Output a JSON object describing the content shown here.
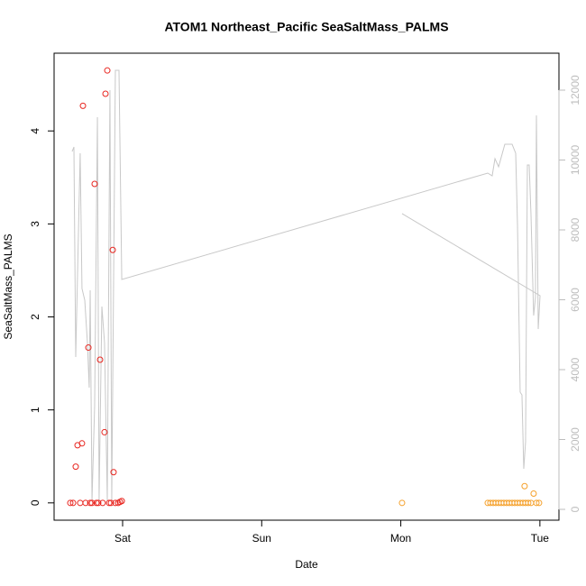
{
  "chart_data": {
    "type": "scatter",
    "title": "ATOM1 Northeast_Pacific SeaSaltMass_PALMS",
    "x_label": "Date",
    "y_label": "SeaSaltMass_PALMS",
    "xlim": [
      -0.4925,
      3.137
    ],
    "xticks": [
      {
        "value": 0,
        "label": "Sat"
      },
      {
        "value": 1,
        "label": "Sun"
      },
      {
        "value": 2,
        "label": "Mon"
      },
      {
        "value": 3,
        "label": "Tue"
      }
    ],
    "ylim": [
      -0.186,
      4.836
    ],
    "yticks": [
      0,
      1,
      2,
      3,
      4
    ],
    "y2lim": [
      -310,
      13058
    ],
    "y2ticks": [
      0,
      2000,
      4000,
      6000,
      8000,
      10000,
      12000
    ],
    "y2_color": "#bdbdbd",
    "series": [
      {
        "type": "scatter",
        "color": "#e8251f",
        "x": [
          -0.376,
          -0.356,
          -0.337,
          -0.324,
          -0.305,
          -0.292,
          -0.285,
          -0.266,
          -0.246,
          -0.233,
          -0.22,
          -0.201,
          -0.188,
          -0.175,
          -0.162,
          -0.143,
          -0.13,
          -0.123,
          -0.11,
          -0.097,
          -0.084,
          -0.071,
          -0.065,
          -0.052,
          -0.032,
          -0.019,
          -0.006
        ],
        "values": [
          0,
          0,
          0.39,
          0.62,
          0,
          0.64,
          4.27,
          0,
          1.67,
          0,
          0,
          3.43,
          0,
          0,
          1.54,
          0,
          0.76,
          4.4,
          4.65,
          0,
          0,
          2.72,
          0.33,
          0,
          0,
          0.01,
          0.02
        ]
      },
      {
        "type": "scatter",
        "color": "#f5a02a",
        "x": [
          2.009,
          2.625,
          2.644,
          2.664,
          2.683,
          2.703,
          2.722,
          2.741,
          2.761,
          2.78,
          2.8,
          2.819,
          2.839,
          2.858,
          2.878,
          2.89,
          2.897,
          2.916,
          2.936,
          2.955,
          2.975,
          2.994
        ],
        "values": [
          0,
          0,
          0,
          0,
          0,
          0,
          0,
          0,
          0,
          0,
          0,
          0,
          0,
          0,
          0,
          0.18,
          0,
          0,
          0,
          0.1,
          0,
          0
        ]
      },
      {
        "type": "line",
        "color": "#c8c8c8",
        "axis": "y2",
        "x": [
          -0.363,
          -0.35,
          -0.337,
          -0.305,
          -0.292,
          -0.272,
          -0.253,
          -0.24,
          -0.233,
          -0.22,
          -0.201,
          -0.181,
          -0.169,
          -0.149,
          -0.13,
          -0.11,
          -0.091,
          -0.078,
          -0.052,
          -0.026,
          -0.006,
          2.625,
          2.657,
          2.677,
          2.703,
          2.748,
          2.8,
          2.826,
          2.839,
          2.858,
          2.871,
          2.884,
          2.897,
          2.91,
          2.923,
          2.936,
          2.955,
          2.968,
          2.975,
          2.988,
          3.001,
          2.009
        ],
        "values": [
          10245,
          10374,
          4361,
          10194,
          6323,
          5987,
          4774,
          3484,
          6271,
          258,
          2968,
          11226,
          258,
          5806,
          4774,
          258,
          12000,
          258,
          12568,
          12568,
          6581,
          9626,
          9548,
          10039,
          9806,
          10452,
          10452,
          10194,
          8129,
          3355,
          3277,
          1161,
          1935,
          9858,
          9858,
          8439,
          5548,
          6065,
          11277,
          5161,
          6116,
          8465
        ]
      }
    ]
  }
}
